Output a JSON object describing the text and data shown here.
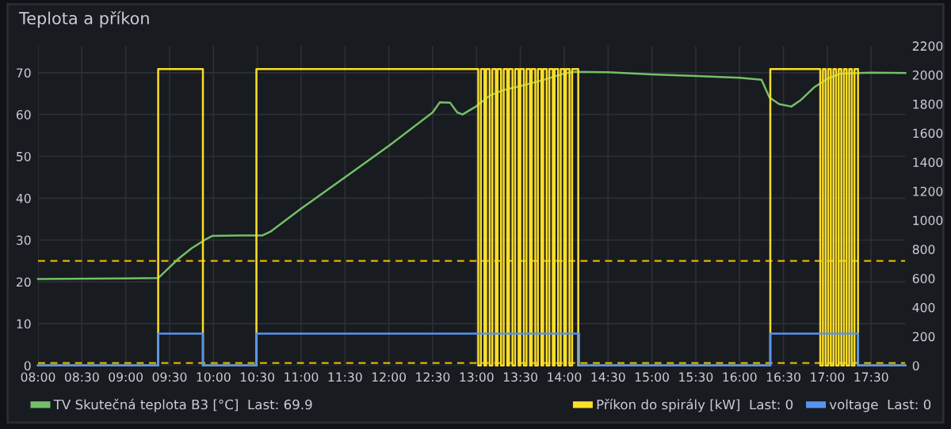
{
  "chart_data": {
    "type": "line",
    "title": "Teplota a příkon",
    "legend": "bottom",
    "grid": true,
    "marker": "none",
    "xlim": [
      8.0,
      17.89
    ],
    "xticks": [
      {
        "value": 8.0,
        "label": "08:00"
      },
      {
        "value": 8.5,
        "label": "08:30"
      },
      {
        "value": 9.0,
        "label": "09:00"
      },
      {
        "value": 9.5,
        "label": "09:30"
      },
      {
        "value": 10.0,
        "label": "10:00"
      },
      {
        "value": 10.5,
        "label": "10:30"
      },
      {
        "value": 11.0,
        "label": "11:00"
      },
      {
        "value": 11.5,
        "label": "11:30"
      },
      {
        "value": 12.0,
        "label": "12:00"
      },
      {
        "value": 12.5,
        "label": "12:30"
      },
      {
        "value": 13.0,
        "label": "13:00"
      },
      {
        "value": 13.5,
        "label": "13:30"
      },
      {
        "value": 14.0,
        "label": "14:00"
      },
      {
        "value": 14.5,
        "label": "14:30"
      },
      {
        "value": 15.0,
        "label": "15:00"
      },
      {
        "value": 15.5,
        "label": "15:30"
      },
      {
        "value": 16.0,
        "label": "16:00"
      },
      {
        "value": 16.5,
        "label": "16:30"
      },
      {
        "value": 17.0,
        "label": "17:00"
      },
      {
        "value": 17.5,
        "label": "17:30"
      }
    ],
    "ylim": [
      0,
      76.4
    ],
    "yticks": [
      0,
      10,
      20,
      30,
      40,
      50,
      60,
      70
    ],
    "y2lim": [
      0,
      2200
    ],
    "y2ticks": [
      0,
      200,
      400,
      600,
      800,
      1000,
      1200,
      1400,
      1600,
      1800,
      2000,
      2200
    ],
    "ref_lines": [
      {
        "axis": "y",
        "value": 25,
        "color": "#e0b400",
        "line_style": "dashed"
      },
      {
        "axis": "y",
        "value": 0.6,
        "color": "#e0b400",
        "line_style": "dashed"
      }
    ],
    "series": [
      {
        "name": "TV Skutečná teplota B3 [°C]  Last: 69.9",
        "color": "#73bf69",
        "x": [
          8.0,
          9.0,
          9.37,
          9.45,
          9.6,
          9.75,
          9.9,
          9.99,
          10.3,
          10.56,
          10.65,
          11.0,
          11.5,
          12.0,
          12.5,
          12.58,
          12.7,
          12.78,
          12.84,
          12.92,
          13.0,
          13.15,
          13.3,
          13.5,
          13.75,
          14.0,
          14.12,
          14.5,
          15.0,
          15.5,
          16.0,
          16.25,
          16.34,
          16.45,
          16.59,
          16.7,
          16.85,
          17.0,
          17.15,
          17.5,
          17.89
        ],
        "values": [
          20.7,
          20.8,
          20.9,
          22.5,
          25.5,
          28.0,
          30.0,
          31.0,
          31.1,
          31.1,
          32.0,
          37.5,
          45.0,
          52.5,
          60.5,
          62.9,
          62.8,
          60.5,
          60.0,
          61.0,
          62.0,
          64.5,
          65.8,
          66.8,
          68.2,
          69.8,
          70.2,
          70.1,
          69.6,
          69.2,
          68.8,
          68.3,
          64.1,
          62.5,
          61.9,
          63.5,
          66.5,
          68.5,
          69.8,
          70.0,
          69.9
        ]
      },
      {
        "name": "Příkon do spirály [kW]  Last: 0",
        "type": "step",
        "axis": "y2",
        "color": "#fade2a",
        "x": [
          8.0,
          9.37,
          9.88,
          10.49,
          13.02,
          13.05,
          13.09,
          13.11,
          13.15,
          13.18,
          13.22,
          13.24,
          13.28,
          13.31,
          13.35,
          13.37,
          13.41,
          13.44,
          13.48,
          13.5,
          13.54,
          13.57,
          13.61,
          13.63,
          13.67,
          13.7,
          13.74,
          13.76,
          13.8,
          13.83,
          13.87,
          13.89,
          13.93,
          13.96,
          14.0,
          14.02,
          14.06,
          14.09,
          14.16,
          16.35,
          16.92,
          16.95,
          16.98,
          17.01,
          17.04,
          17.07,
          17.1,
          17.13,
          17.16,
          17.19,
          17.22,
          17.25,
          17.28,
          17.31,
          17.35,
          17.89
        ],
        "values": [
          0,
          2040,
          0,
          2040,
          0,
          2040,
          0,
          2040,
          0,
          2040,
          0,
          2040,
          0,
          2040,
          0,
          2040,
          0,
          2040,
          0,
          2040,
          0,
          2040,
          0,
          2040,
          0,
          2040,
          0,
          2040,
          0,
          2040,
          0,
          2040,
          0,
          2040,
          0,
          2040,
          0,
          2040,
          0,
          2040,
          0,
          2040,
          0,
          2040,
          0,
          2040,
          0,
          2040,
          0,
          2040,
          0,
          2040,
          0,
          2040,
          0,
          0
        ]
      },
      {
        "name": "voltage  Last: 0",
        "type": "step",
        "axis": "y2",
        "color": "#5794f2",
        "x": [
          8.0,
          9.37,
          9.88,
          10.49,
          14.17,
          16.35,
          17.35,
          17.89
        ],
        "values": [
          0,
          220,
          0,
          220,
          0,
          220,
          0,
          0
        ]
      }
    ]
  }
}
